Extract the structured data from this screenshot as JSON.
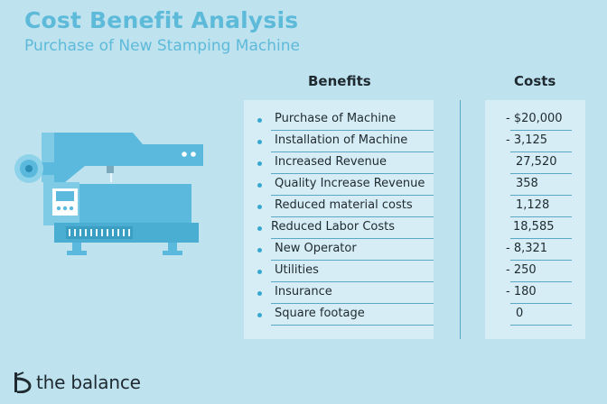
{
  "title": "Cost Benefit Analysis",
  "subtitle": "Purchase of New Stamping Machine",
  "columns": {
    "benefits": "Benefits",
    "costs": "Costs"
  },
  "rows": [
    {
      "label": "Purchase of Machine",
      "cost": "- $20,000"
    },
    {
      "label": "Installation of Machine",
      "cost": "- 3,125"
    },
    {
      "label": "Increased Revenue",
      "cost": "27,520"
    },
    {
      "label": "Quality Increase Revenue",
      "cost": "358"
    },
    {
      "label": "Reduced material costs",
      "cost": "1,128"
    },
    {
      "label": "Reduced Labor Costs",
      "cost": "18,585"
    },
    {
      "label": "New Operator",
      "cost": "- 8,321"
    },
    {
      "label": "Utilities",
      "cost": "- 250"
    },
    {
      "label": "Insurance",
      "cost": "- 180"
    },
    {
      "label": "Square footage",
      "cost": "0"
    }
  ],
  "brand": {
    "name": "the balance",
    "logo_icon": "the-balance-logo-icon"
  },
  "colors": {
    "background": "#bfe2ef",
    "title": "#5dbad9",
    "panel": "#d6edf5",
    "rule": "#5aa8c6",
    "bullet": "#3aa7cf",
    "text": "#1f2a30"
  },
  "illustration": {
    "icon": "stamping-machine-icon"
  }
}
